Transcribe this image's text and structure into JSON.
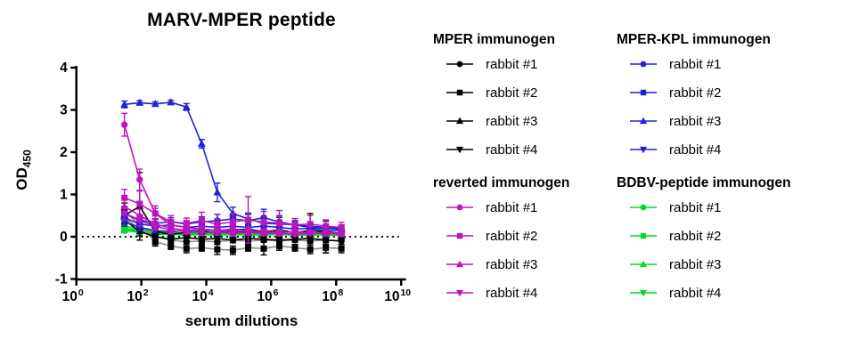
{
  "chart": {
    "title": "MARV-MPER peptide",
    "xlabel": "serum dilutions",
    "ylabel_main": "OD",
    "ylabel_sub": "450"
  },
  "colors": {
    "mper": "#000000",
    "mper_kpl": "#2222d2",
    "reverted": "#bb16bb",
    "bdbv": "#00dc28",
    "mper_fit_line": "#8c8c8c",
    "axis": "#000000"
  },
  "legend": {
    "groups": [
      {
        "title": "MPER immunogen",
        "color": "#000000",
        "items": [
          {
            "label": "rabbit #1",
            "marker": "circle"
          },
          {
            "label": "rabbit #2",
            "marker": "square"
          },
          {
            "label": "rabbit #3",
            "marker": "triangle-up"
          },
          {
            "label": "rabbit #4",
            "marker": "triangle-down"
          }
        ]
      },
      {
        "title": "MPER-KPL immunogen",
        "color": "#2222d2",
        "items": [
          {
            "label": "rabbit #1",
            "marker": "circle"
          },
          {
            "label": "rabbit #2",
            "marker": "square"
          },
          {
            "label": "rabbit #3",
            "marker": "triangle-up"
          },
          {
            "label": "rabbit #4",
            "marker": "triangle-down"
          }
        ]
      },
      {
        "title": "reverted immunogen",
        "color": "#bb16bb",
        "items": [
          {
            "label": "rabbit #1",
            "marker": "circle"
          },
          {
            "label": "rabbit #2",
            "marker": "square"
          },
          {
            "label": "rabbit #3",
            "marker": "triangle-up"
          },
          {
            "label": "rabbit #4",
            "marker": "triangle-down"
          }
        ]
      },
      {
        "title": "BDBV-peptide immunogen",
        "color": "#00dc28",
        "items": [
          {
            "label": "rabbit #1",
            "marker": "circle"
          },
          {
            "label": "rabbit #2",
            "marker": "square"
          },
          {
            "label": "rabbit #3",
            "marker": "triangle-up"
          },
          {
            "label": "rabbit #4",
            "marker": "triangle-down"
          }
        ]
      }
    ]
  },
  "chart_data": {
    "type": "line",
    "title": "MARV-MPER peptide",
    "xlabel": "serum dilutions",
    "ylabel": "OD450",
    "x_scale": "log10",
    "x_log10": [
      1.48,
      1.95,
      2.43,
      2.91,
      3.39,
      3.86,
      4.34,
      4.82,
      5.29,
      5.77,
      6.25,
      6.73,
      7.2,
      7.68,
      8.16
    ],
    "x_tick_exponents": [
      0,
      2,
      4,
      6,
      8,
      10
    ],
    "xlim_log10": [
      0,
      10.15
    ],
    "y_ticks": [
      -1,
      0,
      1,
      2,
      3,
      4
    ],
    "ylim": [
      -1,
      4
    ],
    "zero_line_dotted": true,
    "legend_position": "right",
    "series": [
      {
        "group": "BDBV-peptide immunogen",
        "name": "rabbit #1",
        "color": "#00dc28",
        "marker": "circle",
        "values": [
          0.25,
          0.18,
          0.12,
          0.1,
          0.08,
          0.1,
          0.08,
          0.08,
          0.1,
          0.08,
          0.08,
          0.06,
          0.06,
          0.08,
          0.06
        ],
        "errors": [
          0.1,
          0.08,
          0.06,
          0.05,
          0.05,
          0.05,
          0.04,
          0.05,
          0.06,
          0.04,
          0.05,
          0.04,
          0.04,
          0.05,
          0.04
        ]
      },
      {
        "group": "BDBV-peptide immunogen",
        "name": "rabbit #2",
        "color": "#00dc28",
        "marker": "square",
        "values": [
          0.2,
          0.15,
          0.1,
          0.08,
          0.06,
          0.08,
          0.06,
          0.08,
          0.06,
          0.06,
          0.08,
          0.06,
          0.05,
          0.06,
          0.05
        ],
        "errors": [
          0.08,
          0.06,
          0.05,
          0.04,
          0.04,
          0.04,
          0.04,
          0.04,
          0.04,
          0.04,
          0.04,
          0.04,
          0.03,
          0.04,
          0.03
        ]
      },
      {
        "group": "BDBV-peptide immunogen",
        "name": "rabbit #3",
        "color": "#00dc28",
        "marker": "triangle-up",
        "values": [
          0.18,
          0.12,
          0.08,
          0.06,
          0.05,
          0.06,
          0.05,
          0.06,
          0.05,
          0.05,
          0.06,
          0.05,
          0.04,
          0.05,
          0.04
        ],
        "errors": [
          0.07,
          0.05,
          0.05,
          0.04,
          0.03,
          0.04,
          0.03,
          0.04,
          0.03,
          0.03,
          0.04,
          0.03,
          0.03,
          0.03,
          0.03
        ]
      },
      {
        "group": "BDBV-peptide immunogen",
        "name": "rabbit #4",
        "color": "#00dc28",
        "marker": "triangle-down",
        "values": [
          0.15,
          0.1,
          0.06,
          0.05,
          0.04,
          0.05,
          0.04,
          0.05,
          0.04,
          0.04,
          0.05,
          0.04,
          0.04,
          0.04,
          0.03
        ],
        "errors": [
          0.06,
          0.05,
          0.04,
          0.03,
          0.03,
          0.03,
          0.03,
          0.03,
          0.03,
          0.03,
          0.03,
          0.03,
          0.02,
          0.03,
          0.02
        ]
      },
      {
        "group": "MPER immunogen",
        "name": "rabbit #1",
        "color": "#000000",
        "marker": "circle",
        "line_color": "#8c8c8c",
        "values": [
          0.45,
          0.18,
          0.02,
          -0.08,
          -0.12,
          -0.1,
          -0.12,
          -0.08,
          -0.1,
          -0.08,
          -0.1,
          -0.08,
          -0.1,
          -0.08,
          -0.1
        ],
        "errors": [
          0.15,
          0.1,
          0.08,
          0.06,
          0.06,
          0.05,
          0.06,
          0.05,
          0.06,
          0.05,
          0.08,
          0.05,
          0.06,
          0.1,
          0.08
        ]
      },
      {
        "group": "MPER immunogen",
        "name": "rabbit #2",
        "color": "#000000",
        "marker": "square",
        "line_color": "#8c8c8c",
        "values": [
          0.6,
          0.28,
          -0.12,
          -0.22,
          -0.28,
          -0.26,
          -0.3,
          -0.32,
          -0.26,
          -0.28,
          -0.22,
          -0.26,
          -0.3,
          -0.26,
          -0.28
        ],
        "errors": [
          0.2,
          0.15,
          0.1,
          0.08,
          0.1,
          0.08,
          0.12,
          0.1,
          0.08,
          0.15,
          0.1,
          0.08,
          0.1,
          0.12,
          0.1
        ]
      },
      {
        "group": "MPER immunogen",
        "name": "rabbit #3",
        "color": "#000000",
        "marker": "triangle-up",
        "values": [
          0.5,
          0.72,
          0.12,
          0.06,
          0.1,
          0.14,
          0.1,
          0.16,
          0.18,
          0.12,
          0.16,
          0.1,
          0.15,
          0.12,
          0.08
        ],
        "errors": [
          0.2,
          0.8,
          0.3,
          0.15,
          0.2,
          0.25,
          0.2,
          0.3,
          0.35,
          0.2,
          0.3,
          0.2,
          0.4,
          0.25,
          0.2
        ]
      },
      {
        "group": "MPER immunogen",
        "name": "rabbit #4",
        "color": "#000000",
        "marker": "triangle-down",
        "values": [
          0.4,
          0.12,
          0.0,
          -0.06,
          -0.02,
          -0.06,
          -0.04,
          -0.08,
          -0.04,
          -0.06,
          -0.08,
          -0.06,
          -0.04,
          -0.08,
          -0.1
        ],
        "errors": [
          0.15,
          0.1,
          0.08,
          0.06,
          0.08,
          0.06,
          0.08,
          0.06,
          0.08,
          0.06,
          0.08,
          0.06,
          0.08,
          0.3,
          0.15
        ]
      },
      {
        "group": "MPER-KPL immunogen",
        "name": "rabbit #1",
        "color": "#2222d2",
        "marker": "circle",
        "values": [
          0.55,
          0.4,
          0.32,
          0.35,
          0.3,
          0.35,
          0.38,
          0.42,
          0.38,
          0.45,
          0.35,
          0.28,
          0.22,
          0.2,
          0.18
        ],
        "errors": [
          0.15,
          0.12,
          0.1,
          0.1,
          0.08,
          0.12,
          0.15,
          0.12,
          0.18,
          0.2,
          0.15,
          0.1,
          0.1,
          0.08,
          0.08
        ]
      },
      {
        "group": "MPER-KPL immunogen",
        "name": "rabbit #2",
        "color": "#2222d2",
        "marker": "square",
        "values": [
          0.45,
          0.3,
          0.25,
          0.28,
          0.22,
          0.25,
          0.22,
          0.25,
          0.22,
          0.25,
          0.22,
          0.18,
          0.2,
          0.15,
          0.15
        ],
        "errors": [
          0.12,
          0.1,
          0.08,
          0.08,
          0.06,
          0.08,
          0.06,
          0.08,
          0.06,
          0.08,
          0.06,
          0.05,
          0.06,
          0.05,
          0.05
        ]
      },
      {
        "group": "MPER-KPL immunogen",
        "name": "rabbit #3",
        "color": "#2222d2",
        "marker": "triangle-up",
        "values": [
          3.13,
          3.17,
          3.14,
          3.18,
          3.07,
          2.2,
          1.05,
          0.55,
          0.42,
          0.32,
          0.3,
          0.28,
          0.25,
          0.22,
          0.2
        ],
        "errors": [
          0.08,
          0.05,
          0.05,
          0.05,
          0.08,
          0.1,
          0.22,
          0.15,
          0.12,
          0.1,
          0.08,
          0.08,
          0.06,
          0.06,
          0.05
        ]
      },
      {
        "group": "MPER-KPL immunogen",
        "name": "rabbit #4",
        "color": "#2222d2",
        "marker": "triangle-down",
        "values": [
          0.35,
          0.22,
          0.15,
          0.12,
          0.15,
          0.1,
          0.12,
          0.1,
          0.12,
          0.1,
          0.1,
          0.12,
          0.1,
          0.08,
          0.08
        ],
        "errors": [
          0.1,
          0.08,
          0.06,
          0.05,
          0.06,
          0.05,
          0.06,
          0.05,
          0.06,
          0.05,
          0.05,
          0.06,
          0.05,
          0.05,
          0.04
        ]
      },
      {
        "group": "reverted immunogen",
        "name": "rabbit #1",
        "color": "#bb16bb",
        "marker": "circle",
        "values": [
          2.65,
          1.35,
          0.55,
          0.28,
          0.22,
          0.18,
          0.15,
          0.18,
          0.15,
          0.12,
          0.12,
          0.1,
          0.1,
          0.08,
          0.08
        ],
        "errors": [
          0.27,
          0.25,
          0.12,
          0.1,
          0.08,
          0.06,
          0.06,
          0.08,
          0.06,
          0.05,
          0.06,
          0.05,
          0.05,
          0.05,
          0.04
        ]
      },
      {
        "group": "reverted immunogen",
        "name": "rabbit #2",
        "color": "#bb16bb",
        "marker": "square",
        "values": [
          0.92,
          0.78,
          0.55,
          0.35,
          0.32,
          0.38,
          0.3,
          0.35,
          0.4,
          0.35,
          0.32,
          0.28,
          0.3,
          0.25,
          0.22
        ],
        "errors": [
          0.2,
          0.3,
          0.18,
          0.15,
          0.12,
          0.2,
          0.12,
          0.2,
          0.55,
          0.25,
          0.3,
          0.15,
          0.2,
          0.15,
          0.12
        ]
      },
      {
        "group": "reverted immunogen",
        "name": "rabbit #3",
        "color": "#bb16bb",
        "marker": "triangle-up",
        "values": [
          0.72,
          0.5,
          0.3,
          0.2,
          0.15,
          0.18,
          0.15,
          0.12,
          0.15,
          0.12,
          0.1,
          0.12,
          0.1,
          0.1,
          0.08
        ],
        "errors": [
          0.2,
          0.15,
          0.12,
          0.1,
          0.08,
          0.08,
          0.06,
          0.06,
          0.08,
          0.06,
          0.05,
          0.06,
          0.05,
          0.05,
          0.04
        ]
      },
      {
        "group": "reverted immunogen",
        "name": "rabbit #4",
        "color": "#bb16bb",
        "marker": "triangle-down",
        "values": [
          0.55,
          0.38,
          0.25,
          0.15,
          0.12,
          0.1,
          0.1,
          0.08,
          0.1,
          0.08,
          0.08,
          0.06,
          0.08,
          0.08,
          0.06
        ],
        "errors": [
          0.15,
          0.12,
          0.1,
          0.08,
          0.06,
          0.05,
          0.06,
          0.05,
          0.06,
          0.05,
          0.05,
          0.04,
          0.05,
          0.05,
          0.04
        ]
      }
    ]
  }
}
